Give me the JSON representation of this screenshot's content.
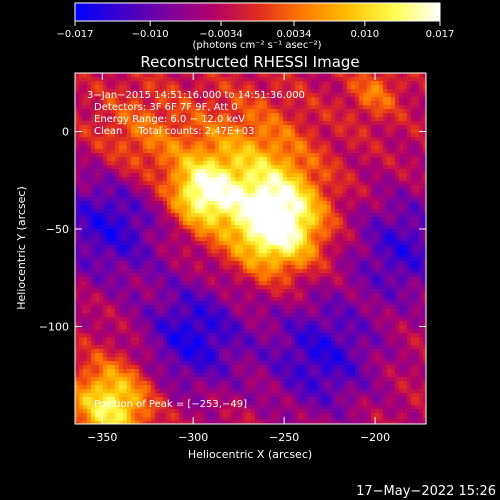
{
  "chart_data": {
    "type": "heatmap",
    "title": "Reconstructed RHESSI Image",
    "xlabel": "Heliocentric X (arcsec)",
    "ylabel": "Heliocentric Y (arcsec)",
    "xlim": [
      -365,
      -172
    ],
    "ylim": [
      -150,
      30
    ],
    "x_ticks": [
      -350,
      -300,
      -250,
      -200
    ],
    "x_tick_labels": [
      "−350",
      "−300",
      "−250",
      "−200"
    ],
    "y_ticks": [
      0,
      -50,
      -100
    ],
    "y_tick_labels": [
      "0",
      "−50",
      "−100"
    ],
    "colorbar": {
      "min": -0.017,
      "max": 0.017,
      "ticks": [
        -0.017,
        -0.01,
        -0.0034,
        0.0034,
        0.01,
        0.017
      ],
      "tick_labels": [
        "−0.017",
        "−0.010",
        "−0.0034",
        "0.0034",
        "0.010",
        "0.017"
      ],
      "unit_label": "(photons cm⁻² s⁻¹ asec⁻²)",
      "colors": [
        "#0000ff",
        "#3a00cc",
        "#7a00a0",
        "#b0006a",
        "#e02a20",
        "#ff7a00",
        "#ffc000",
        "#ffff50",
        "#ffffff"
      ]
    },
    "annotations": [
      "3−Jan−2015 14:51:16.000 to 14:51:36.000",
      "Detectors: 3F 6F 7F 9F, Att 0",
      "Energy Range: 6.0 − 12.0 keV",
      "Clean     Total counts: 2.47E+03"
    ],
    "peak_label": "Position of Peak = [−253,−49]",
    "peak": [
      -253,
      -49
    ],
    "sources": [
      {
        "x": -254,
        "y": -47,
        "amp": 1.0,
        "sigma": 17
      },
      {
        "x": -295,
        "y": -32,
        "amp": 0.72,
        "sigma": 12
      },
      {
        "x": -270,
        "y": -18,
        "amp": 0.45,
        "sigma": 24
      },
      {
        "x": -330,
        "y": -8,
        "amp": 0.35,
        "sigma": 20
      },
      {
        "x": -345,
        "y": -140,
        "amp": 0.75,
        "sigma": 15
      },
      {
        "x": -200,
        "y": 20,
        "amp": 0.3,
        "sigma": 10
      }
    ],
    "negative_regions": [
      {
        "x": -345,
        "y": -45,
        "amp": -0.55,
        "sigma": 22
      },
      {
        "x": -300,
        "y": -105,
        "amp": -0.55,
        "sigma": 20
      },
      {
        "x": -230,
        "y": -115,
        "amp": -0.5,
        "sigma": 22
      },
      {
        "x": -185,
        "y": -60,
        "amp": -0.45,
        "sigma": 20
      }
    ]
  },
  "footer": {
    "date": "17−May−2022 15:26"
  }
}
